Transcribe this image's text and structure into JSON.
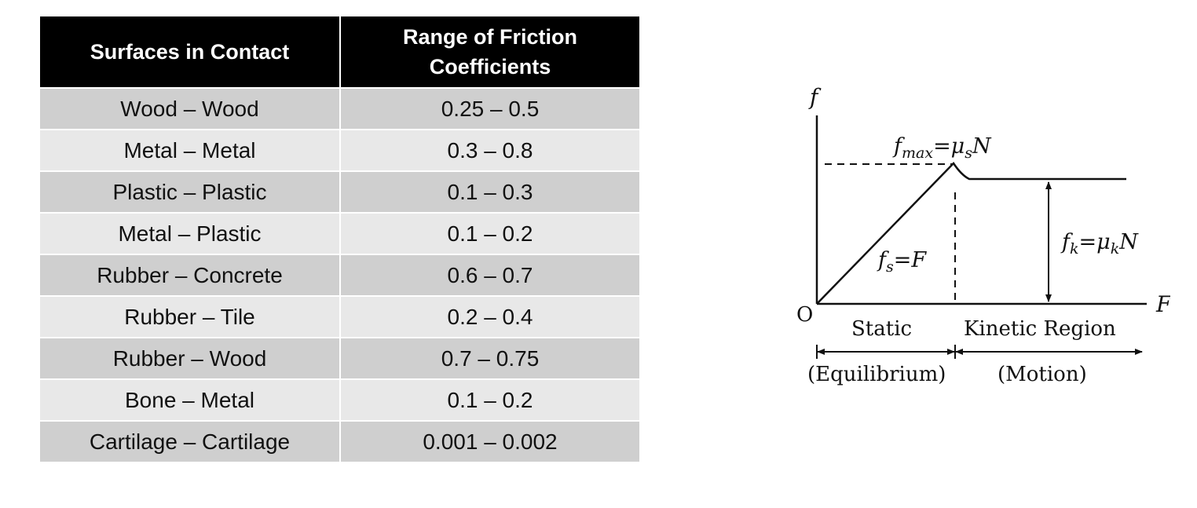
{
  "table": {
    "headers": [
      "Surfaces in Contact",
      "Range of Friction Coefficients"
    ],
    "header_lines": {
      "col1": "Surfaces in Contact",
      "col2_line1": "Range of Friction",
      "col2_line2": "Coefficients"
    },
    "rows": [
      {
        "surfaces": "Wood – Wood",
        "range": "0.25 – 0.5"
      },
      {
        "surfaces": "Metal – Metal",
        "range": "0.3 – 0.8"
      },
      {
        "surfaces": "Plastic – Plastic",
        "range": "0.1 – 0.3"
      },
      {
        "surfaces": "Metal – Plastic",
        "range": "0.1 – 0.2"
      },
      {
        "surfaces": "Rubber – Concrete",
        "range": "0.6 – 0.7"
      },
      {
        "surfaces": "Rubber – Tile",
        "range": "0.2 – 0.4"
      },
      {
        "surfaces": "Rubber – Wood",
        "range": "0.7 – 0.75"
      },
      {
        "surfaces": "Bone – Metal",
        "range": "0.1 – 0.2"
      },
      {
        "surfaces": "Cartilage – Cartilage",
        "range": "0.001 – 0.002"
      }
    ]
  },
  "diagram": {
    "y_axis_label": "f",
    "x_axis_label": "F",
    "origin_label": "O",
    "fmax_label": {
      "lhs": "f",
      "lhs_sub": "max",
      "rhs": "=μ",
      "rhs_sub": "s",
      "tail": "N"
    },
    "fs_label": {
      "lhs": "f",
      "lhs_sub": "s",
      "rhs": "=F"
    },
    "fk_label": {
      "lhs": "f",
      "lhs_sub": "k",
      "rhs": "=μ",
      "rhs_sub": "k",
      "tail": "N"
    },
    "static_label": "Static",
    "kinetic_label": "Kinetic Region",
    "equilibrium_label": "(Equilibrium)",
    "motion_label": "(Motion)"
  }
}
